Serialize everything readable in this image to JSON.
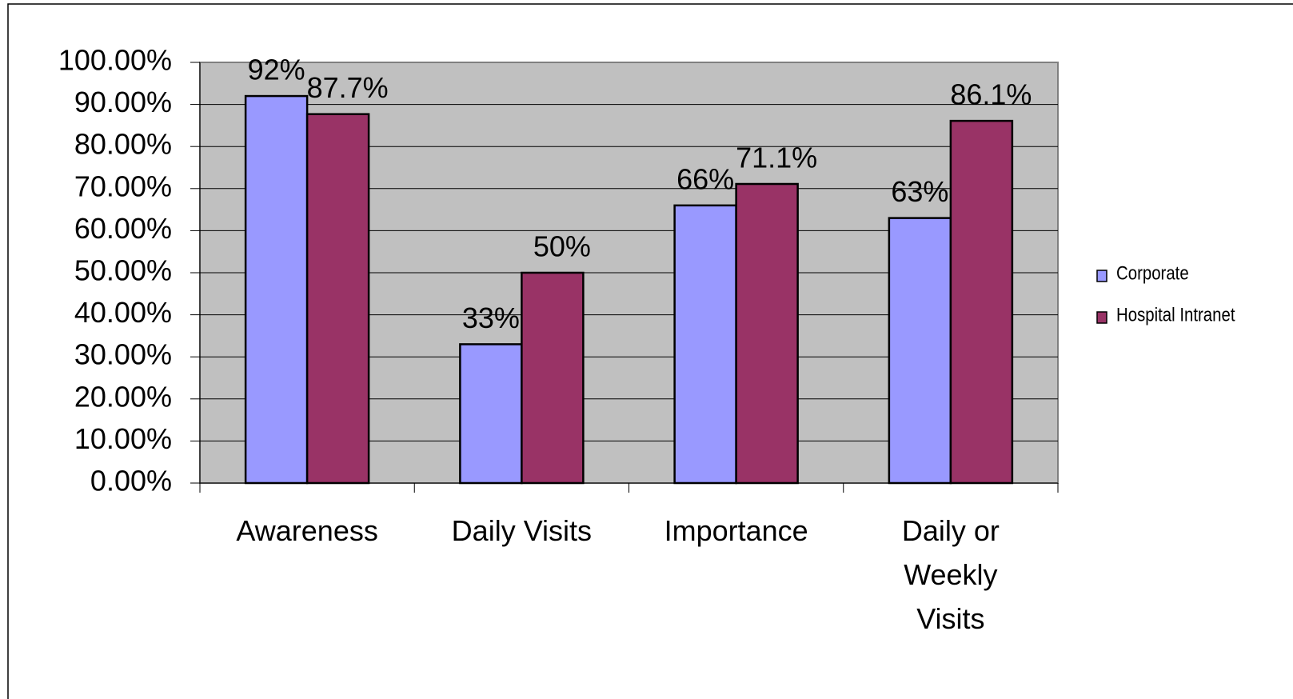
{
  "chart_data": {
    "type": "bar",
    "categories": [
      "Awareness",
      "Daily Visits",
      "Importance",
      "Daily or Weekly Visits"
    ],
    "series": [
      {
        "name": "Corporate",
        "color": "#9999ff",
        "values": [
          92,
          33,
          66,
          63
        ],
        "value_labels": [
          "92%",
          "33%",
          "66%",
          "63%"
        ]
      },
      {
        "name": "Hospital Intranet",
        "color": "#993366",
        "values": [
          87.7,
          50,
          71.1,
          86.1
        ],
        "value_labels": [
          "87.7%",
          "50%",
          "71.1%",
          "86.1%"
        ]
      }
    ],
    "ylim": [
      0,
      100
    ],
    "yticks": [
      {
        "value": 0,
        "label": "0.00%"
      },
      {
        "value": 10,
        "label": "10.00%"
      },
      {
        "value": 20,
        "label": "20.00%"
      },
      {
        "value": 30,
        "label": "30.00%"
      },
      {
        "value": 40,
        "label": "40.00%"
      },
      {
        "value": 50,
        "label": "50.00%"
      },
      {
        "value": 60,
        "label": "60.00%"
      },
      {
        "value": 70,
        "label": "70.00%"
      },
      {
        "value": 80,
        "label": "80.00%"
      },
      {
        "value": 90,
        "label": "90.00%"
      },
      {
        "value": 100,
        "label": "100.00%"
      }
    ],
    "grid": true,
    "legend": "right",
    "plot_background": "#c0c0c0"
  }
}
